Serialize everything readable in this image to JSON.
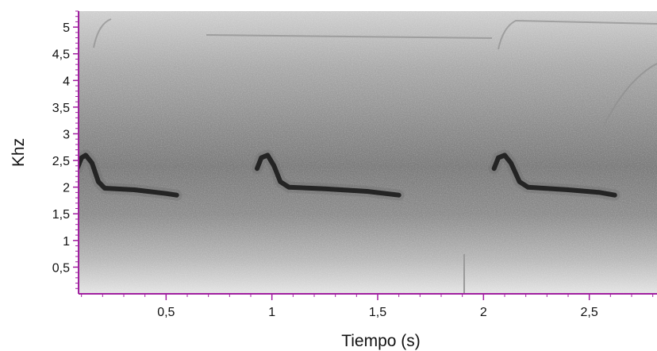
{
  "chart_data": {
    "type": "spectrogram",
    "xlabel": "Tiempo (s)",
    "ylabel": "Khz",
    "xlim": [
      0.0,
      2.82
    ],
    "ylim": [
      0.0,
      5.3
    ],
    "x_ticks": [
      {
        "value": 0.5,
        "label": "0,5"
      },
      {
        "value": 1.0,
        "label": "1"
      },
      {
        "value": 1.5,
        "label": "1,5"
      },
      {
        "value": 2.0,
        "label": "2"
      },
      {
        "value": 2.5,
        "label": "2,5"
      }
    ],
    "y_ticks": [
      {
        "value": 0.5,
        "label": "0,5"
      },
      {
        "value": 1.0,
        "label": "1"
      },
      {
        "value": 1.5,
        "label": "1,5"
      },
      {
        "value": 2.0,
        "label": "2"
      },
      {
        "value": 2.5,
        "label": "2,5"
      },
      {
        "value": 3.0,
        "label": "3"
      },
      {
        "value": 3.5,
        "label": "3,5"
      },
      {
        "value": 4.0,
        "label": "4"
      },
      {
        "value": 4.5,
        "label": "4,5"
      },
      {
        "value": 5.0,
        "label": "5"
      }
    ],
    "series": [
      {
        "values": [
          {
            "t": 0.08,
            "khz": 2.35
          },
          {
            "t": 0.1,
            "khz": 2.55
          },
          {
            "t": 0.12,
            "khz": 2.6
          },
          {
            "t": 0.15,
            "khz": 2.45
          },
          {
            "t": 0.18,
            "khz": 2.1
          },
          {
            "t": 0.21,
            "khz": 1.98
          },
          {
            "t": 0.35,
            "khz": 1.95
          },
          {
            "t": 0.5,
            "khz": 1.88
          },
          {
            "t": 0.55,
            "khz": 1.85
          }
        ]
      },
      {
        "values": [
          {
            "t": 0.93,
            "khz": 2.35
          },
          {
            "t": 0.95,
            "khz": 2.55
          },
          {
            "t": 0.98,
            "khz": 2.6
          },
          {
            "t": 1.01,
            "khz": 2.4
          },
          {
            "t": 1.04,
            "khz": 2.1
          },
          {
            "t": 1.08,
            "khz": 2.0
          },
          {
            "t": 1.25,
            "khz": 1.97
          },
          {
            "t": 1.45,
            "khz": 1.92
          },
          {
            "t": 1.6,
            "khz": 1.85
          }
        ]
      },
      {
        "values": [
          {
            "t": 2.05,
            "khz": 2.35
          },
          {
            "t": 2.07,
            "khz": 2.55
          },
          {
            "t": 2.1,
            "khz": 2.6
          },
          {
            "t": 2.13,
            "khz": 2.45
          },
          {
            "t": 2.17,
            "khz": 2.1
          },
          {
            "t": 2.21,
            "khz": 2.0
          },
          {
            "t": 2.4,
            "khz": 1.95
          },
          {
            "t": 2.55,
            "khz": 1.9
          },
          {
            "t": 2.62,
            "khz": 1.85
          }
        ]
      }
    ],
    "colors": {
      "axis": "#a020a0",
      "signal": "#141414",
      "band": "#6e6e6e",
      "noise_light": "#d8d8d8"
    }
  }
}
